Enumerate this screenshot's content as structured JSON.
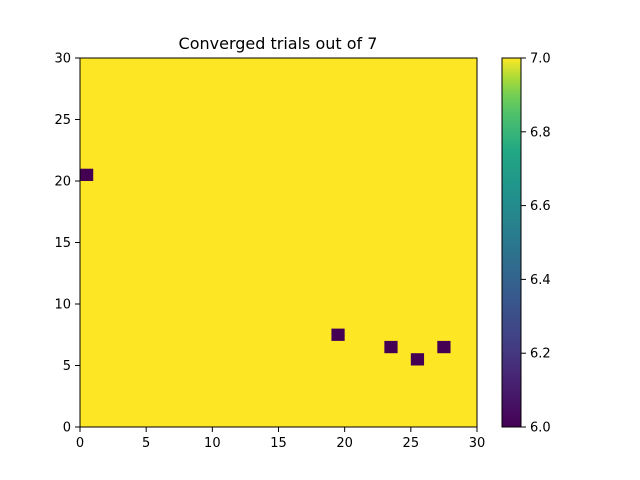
{
  "chart_data": {
    "type": "heatmap",
    "title": "Converged trials out of 7",
    "xlabel": "",
    "ylabel": "",
    "xlim": [
      0,
      30
    ],
    "ylim": [
      0,
      30
    ],
    "x_ticks": [
      0,
      5,
      10,
      15,
      20,
      25,
      30
    ],
    "y_ticks": [
      0,
      5,
      10,
      15,
      20,
      25,
      30
    ],
    "grid": false,
    "cell_size": 1,
    "grid_shape": [
      30,
      30
    ],
    "default_value": 7,
    "cells": [
      {
        "x": 0,
        "y": 20,
        "value": 6
      },
      {
        "x": 19,
        "y": 7,
        "value": 6
      },
      {
        "x": 23,
        "y": 6,
        "value": 6
      },
      {
        "x": 25,
        "y": 5,
        "value": 6
      },
      {
        "x": 27,
        "y": 6,
        "value": 6
      }
    ],
    "colorbar": {
      "colormap": "viridis",
      "min": 6.0,
      "max": 7.0,
      "ticks": [
        "6.0",
        "6.2",
        "6.4",
        "6.6",
        "6.8",
        "7.0"
      ],
      "min_color": "#440154",
      "max_color": "#fde725"
    }
  }
}
